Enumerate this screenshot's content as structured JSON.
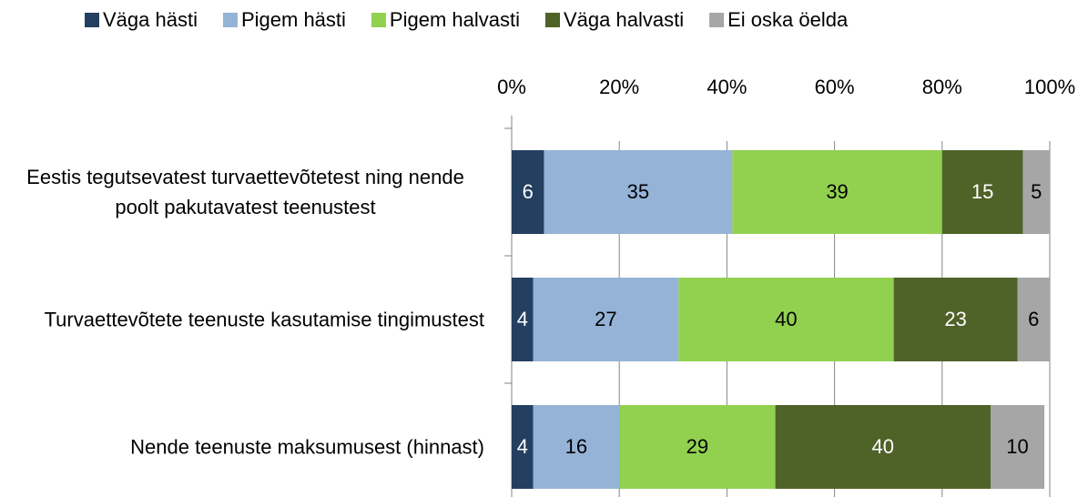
{
  "chart_data": {
    "type": "stacked_barh",
    "categories": [
      "Eestis tegutsevatest turvaettevõtetest ning nende poolt pakutavatest teenustest",
      "Turvaettevõtete teenuste kasutamise tingimustest",
      "Nende teenuste maksumusest (hinnast)"
    ],
    "series": [
      {
        "name": "Väga hästi",
        "color": "#243f60",
        "label_color": "#ffffff",
        "values": [
          6,
          4,
          4
        ]
      },
      {
        "name": "Pigem hästi",
        "color": "#95b3d7",
        "label_color": "#000000",
        "values": [
          35,
          27,
          16
        ]
      },
      {
        "name": "Pigem halvasti",
        "color": "#92d050",
        "label_color": "#000000",
        "values": [
          39,
          40,
          29
        ]
      },
      {
        "name": "Väga halvasti",
        "color": "#4f6228",
        "label_color": "#ffffff",
        "values": [
          15,
          23,
          40
        ]
      },
      {
        "name": "Ei oska öelda",
        "color": "#a6a6a6",
        "label_color": "#000000",
        "values": [
          5,
          6,
          10
        ]
      }
    ],
    "xlim": [
      0,
      100
    ],
    "xticks": [
      {
        "value": 0,
        "label": "0%"
      },
      {
        "value": 20,
        "label": "20%"
      },
      {
        "value": 40,
        "label": "40%"
      },
      {
        "value": 60,
        "label": "60%"
      },
      {
        "value": 80,
        "label": "80%"
      },
      {
        "value": 100,
        "label": "100%"
      }
    ],
    "grid": true,
    "legend": "top"
  }
}
